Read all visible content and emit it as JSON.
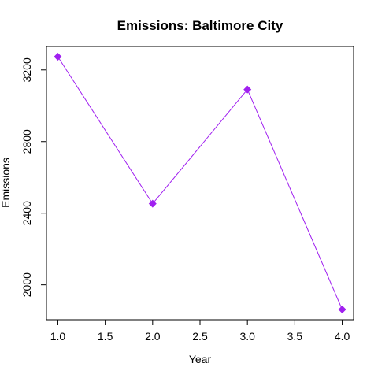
{
  "chart_data": {
    "type": "line",
    "title": "Emissions: Baltimore City",
    "xlabel": "Year",
    "ylabel": "Emissions",
    "x": [
      1.0,
      2.0,
      3.0,
      4.0
    ],
    "series": [
      {
        "values": [
          3274,
          2453,
          3091,
          1862
        ],
        "color": "#a020f0"
      }
    ],
    "xlim": [
      0.88,
      4.12
    ],
    "ylim": [
      1805,
      3331
    ],
    "x_ticks": [
      1.0,
      1.5,
      2.0,
      2.5,
      3.0,
      3.5,
      4.0
    ],
    "x_tick_labels": [
      "1.0",
      "1.5",
      "2.0",
      "2.5",
      "3.0",
      "3.5",
      "4.0"
    ],
    "y_ticks": [
      2000,
      2400,
      2800,
      3200
    ],
    "y_tick_labels": [
      "2000",
      "2400",
      "2800",
      "3200"
    ],
    "marker": "diamond",
    "grid": false,
    "legend": "none"
  }
}
